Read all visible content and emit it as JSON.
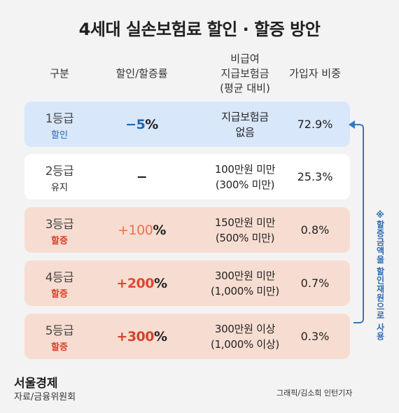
{
  "title": "4세대 실손보험료 할인 · 할증 방안",
  "headers": {
    "grade": "구분",
    "rate": "할인/할증률",
    "benefit_line1": "비급여",
    "benefit_line2": "지급보험금",
    "benefit_line3": "(평균 대비)",
    "share": "가입자 비중"
  },
  "rows": [
    {
      "grade": "1등급",
      "status": "할인",
      "rate_num": "−5",
      "rate_pct": "%",
      "benefit1": "지급보험금",
      "benefit2": "없음",
      "share": "72.9%"
    },
    {
      "grade": "2등급",
      "status": "유지",
      "rate_num": "−",
      "rate_pct": "",
      "benefit1": "100만원 미만",
      "benefit2": "(300% 미만)",
      "share": "25.3%"
    },
    {
      "grade": "3등급",
      "status": "할증",
      "rate_num": "+100",
      "rate_pct": "%",
      "benefit1": "150만원 미만",
      "benefit2": "(500% 미만)",
      "share": "0.8%"
    },
    {
      "grade": "4등급",
      "status": "할증",
      "rate_num": "+200",
      "rate_pct": "%",
      "benefit1": "300만원 미만",
      "benefit2": "(1,000% 미만)",
      "share": "0.7%"
    },
    {
      "grade": "5등급",
      "status": "할증",
      "rate_num": "+300",
      "rate_pct": "%",
      "benefit1": "300만원 이상",
      "benefit2": "(1,000% 이상)",
      "share": "0.3%"
    }
  ],
  "note": "※할증금액을 할인재원으로 사용",
  "brand": "서울경제",
  "source": "자료/금융위원회",
  "credit": "그래픽/김소희 인턴기자",
  "colors": {
    "discount_blue": "#1f66b3",
    "maintain_dark": "#222222",
    "surcharge_red": "#d9402a",
    "surcharge_light": "#f07050",
    "row_blue": "#d9e7fa",
    "row_white": "#ffffff",
    "row_orange": "#f7ddd1",
    "note_blue": "#2d6bb2"
  }
}
